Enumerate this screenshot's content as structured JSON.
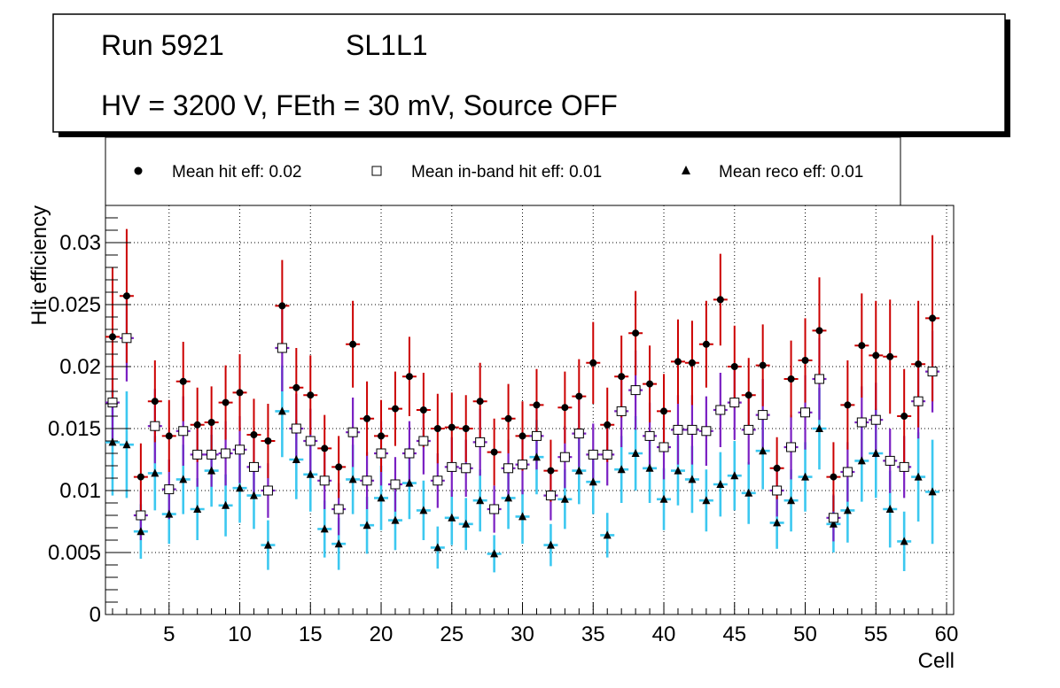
{
  "header": {
    "run_label": "Run 5921",
    "layer_label": "SL1L1",
    "conditions": "HV = 3200 V, FEth = 30 mV, Source OFF"
  },
  "legend": {
    "hit": "Mean hit  eff: 0.02",
    "inband": "Mean in-band hit eff: 0.01",
    "reco": "Mean reco eff: 0.01"
  },
  "colors": {
    "hit_err": "#cc0000",
    "inband_err": "#7a1fc2",
    "reco_err": "#3cc8f0",
    "marker": "#000000"
  },
  "chart_data": {
    "type": "scatter",
    "xlabel": "Cell",
    "ylabel": "Hit efficiency",
    "xlim": [
      0.5,
      60.5
    ],
    "ylim": [
      0,
      0.033
    ],
    "xticks": [
      "5",
      "10",
      "15",
      "20",
      "25",
      "30",
      "35",
      "40",
      "45",
      "50",
      "55",
      "60"
    ],
    "yticks": [
      "0",
      "0.005",
      "0.01",
      "0.015",
      "0.02",
      "0.025",
      "0.03"
    ],
    "grid": true,
    "series": [
      {
        "name": "Mean hit  eff: 0.02",
        "marker": "circle",
        "x": [
          1,
          2,
          3,
          4,
          5,
          6,
          7,
          8,
          9,
          10,
          11,
          12,
          13,
          14,
          15,
          16,
          17,
          18,
          19,
          20,
          21,
          22,
          23,
          24,
          25,
          26,
          27,
          28,
          29,
          30,
          31,
          32,
          33,
          34,
          35,
          36,
          37,
          38,
          39,
          40,
          41,
          42,
          43,
          44,
          45,
          46,
          47,
          48,
          49,
          50,
          51,
          52,
          53,
          54,
          55,
          56,
          57,
          58,
          59
        ],
        "values": [
          0.0224,
          0.0257,
          0.0111,
          0.0172,
          0.0144,
          0.0188,
          0.0153,
          0.0155,
          0.0171,
          0.0179,
          0.0145,
          0.014,
          0.0249,
          0.0183,
          0.0177,
          0.0134,
          0.0119,
          0.0218,
          0.0158,
          0.0144,
          0.0166,
          0.0192,
          0.0165,
          0.015,
          0.0151,
          0.015,
          0.0172,
          0.0131,
          0.0158,
          0.0144,
          0.0169,
          0.0116,
          0.0167,
          0.0176,
          0.0203,
          0.0153,
          0.0192,
          0.0227,
          0.0186,
          0.0164,
          0.0204,
          0.0203,
          0.0218,
          0.0254,
          0.02,
          0.0177,
          0.0201,
          0.0118,
          0.019,
          0.0205,
          0.0229,
          0.0111,
          0.0169,
          0.0217,
          0.0209,
          0.0208,
          0.016,
          0.0202,
          0.0239
        ],
        "errors": [
          0.0056,
          0.0054,
          0.0027,
          0.0033,
          0.0029,
          0.0032,
          0.003,
          0.0029,
          0.003,
          0.0031,
          0.0029,
          0.003,
          0.0037,
          0.0032,
          0.0032,
          0.0027,
          0.0025,
          0.0035,
          0.003,
          0.0029,
          0.003,
          0.0032,
          0.003,
          0.0028,
          0.0028,
          0.0027,
          0.0031,
          0.0027,
          0.0028,
          0.0028,
          0.0029,
          0.0025,
          0.0029,
          0.003,
          0.0033,
          0.003,
          0.0033,
          0.0034,
          0.0031,
          0.003,
          0.0034,
          0.0034,
          0.0035,
          0.0037,
          0.0033,
          0.003,
          0.0033,
          0.0025,
          0.0031,
          0.0034,
          0.0043,
          0.0028,
          0.0036,
          0.0042,
          0.0044,
          0.0046,
          0.0038,
          0.0051,
          0.0067
        ]
      },
      {
        "name": "Mean in-band hit eff: 0.01",
        "marker": "open-square",
        "x": [
          1,
          2,
          3,
          4,
          5,
          6,
          7,
          8,
          9,
          10,
          11,
          12,
          13,
          14,
          15,
          16,
          17,
          18,
          19,
          20,
          21,
          22,
          23,
          24,
          25,
          26,
          27,
          28,
          29,
          30,
          31,
          32,
          33,
          34,
          35,
          36,
          37,
          38,
          39,
          40,
          41,
          42,
          43,
          44,
          45,
          46,
          47,
          48,
          49,
          50,
          51,
          52,
          53,
          54,
          55,
          56,
          57,
          58,
          59
        ],
        "values": [
          0.0171,
          0.0223,
          0.008,
          0.0152,
          0.0101,
          0.0148,
          0.0129,
          0.0129,
          0.013,
          0.0133,
          0.0119,
          0.01,
          0.0215,
          0.015,
          0.014,
          0.0108,
          0.0085,
          0.0147,
          0.0108,
          0.013,
          0.0105,
          0.013,
          0.014,
          0.0108,
          0.0119,
          0.0118,
          0.0139,
          0.0085,
          0.0118,
          0.0121,
          0.0144,
          0.0096,
          0.0127,
          0.0146,
          0.0129,
          0.0129,
          0.0164,
          0.0181,
          0.0144,
          0.0135,
          0.0149,
          0.0149,
          0.0148,
          0.0165,
          0.0171,
          0.0149,
          0.0161,
          0.01,
          0.0135,
          0.0163,
          0.019,
          0.0078,
          0.0115,
          0.0155,
          0.0157,
          0.0124,
          0.0119,
          0.0172,
          0.0196
        ],
        "errors": [
          0.0031,
          0.0035,
          0.002,
          0.003,
          0.0024,
          0.0028,
          0.0026,
          0.0026,
          0.0026,
          0.0027,
          0.0025,
          0.0022,
          0.0035,
          0.0028,
          0.0026,
          0.0023,
          0.0021,
          0.0028,
          0.0023,
          0.0026,
          0.0022,
          0.0026,
          0.0027,
          0.0022,
          0.0024,
          0.0023,
          0.0027,
          0.0019,
          0.0023,
          0.0024,
          0.0027,
          0.002,
          0.0025,
          0.0027,
          0.0025,
          0.0025,
          0.0029,
          0.0032,
          0.0027,
          0.0026,
          0.0028,
          0.0028,
          0.0028,
          0.003,
          0.003,
          0.0028,
          0.0029,
          0.0021,
          0.0026,
          0.003,
          0.0033,
          0.0019,
          0.0024,
          0.0029,
          0.003,
          0.0026,
          0.0025,
          0.003,
          0.0033
        ]
      },
      {
        "name": "Mean reco eff: 0.01",
        "marker": "triangle",
        "x": [
          1,
          2,
          3,
          4,
          5,
          6,
          7,
          8,
          9,
          10,
          11,
          12,
          13,
          14,
          15,
          16,
          17,
          18,
          19,
          20,
          21,
          22,
          23,
          24,
          25,
          26,
          27,
          28,
          29,
          30,
          31,
          32,
          33,
          34,
          35,
          36,
          37,
          38,
          39,
          40,
          41,
          42,
          43,
          44,
          45,
          46,
          47,
          48,
          49,
          50,
          51,
          52,
          53,
          54,
          55,
          56,
          57,
          58,
          59
        ],
        "values": [
          0.0139,
          0.0137,
          0.0067,
          0.0114,
          0.0081,
          0.0109,
          0.0085,
          0.0116,
          0.0088,
          0.0102,
          0.0096,
          0.0056,
          0.0164,
          0.0125,
          0.0113,
          0.0069,
          0.0057,
          0.0109,
          0.0072,
          0.0094,
          0.0076,
          0.0106,
          0.0084,
          0.0054,
          0.0078,
          0.0073,
          0.0092,
          0.0049,
          0.0094,
          0.0079,
          0.0127,
          0.0056,
          0.0093,
          0.0116,
          0.0107,
          0.0064,
          0.0117,
          0.013,
          0.0118,
          0.0093,
          0.0116,
          0.0109,
          0.0092,
          0.0105,
          0.0112,
          0.0098,
          0.0132,
          0.0074,
          0.0092,
          0.0111,
          0.015,
          0.0073,
          0.0084,
          0.0124,
          0.013,
          0.0085,
          0.0059,
          0.0111,
          0.0099
        ],
        "errors": [
          0.0043,
          0.0043,
          0.0022,
          0.003,
          0.0024,
          0.0028,
          0.0025,
          0.0029,
          0.0025,
          0.0028,
          0.0027,
          0.002,
          0.0037,
          0.0032,
          0.003,
          0.0023,
          0.0021,
          0.0028,
          0.0023,
          0.0026,
          0.0024,
          0.0029,
          0.0024,
          0.0017,
          0.0022,
          0.0021,
          0.0025,
          0.0015,
          0.0025,
          0.0022,
          0.003,
          0.0017,
          0.0024,
          0.0027,
          0.0026,
          0.0018,
          0.0027,
          0.003,
          0.0028,
          0.0025,
          0.0028,
          0.0027,
          0.0025,
          0.0026,
          0.0028,
          0.0025,
          0.0031,
          0.0021,
          0.0025,
          0.0028,
          0.0033,
          0.0023,
          0.0026,
          0.0033,
          0.0036,
          0.0031,
          0.0024,
          0.0036,
          0.0042
        ]
      }
    ]
  }
}
